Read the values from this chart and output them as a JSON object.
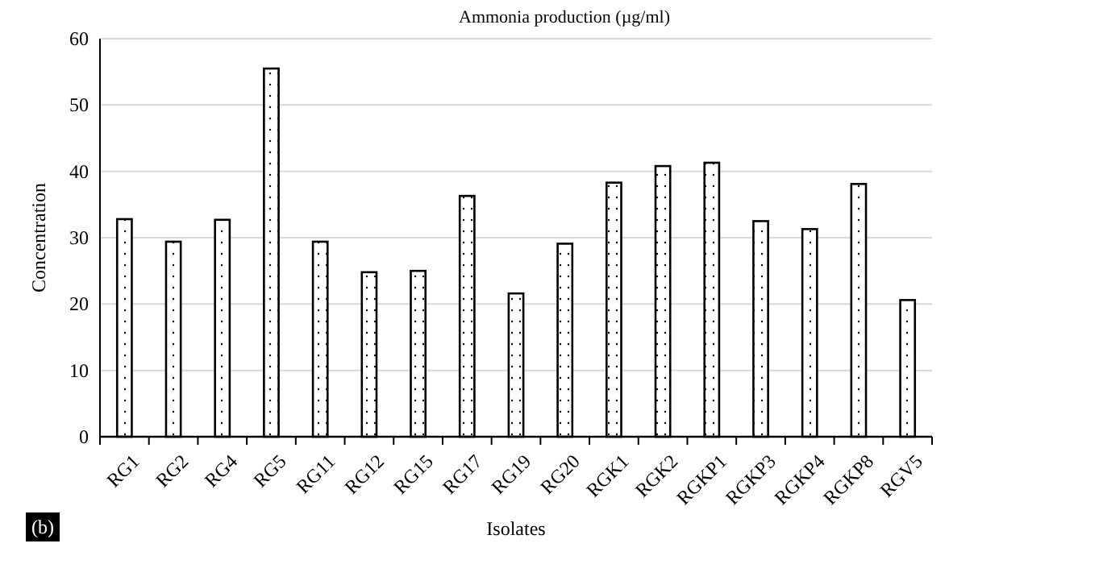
{
  "chart_data": {
    "type": "bar",
    "title": "Ammonia production (µg/ml)",
    "xlabel": "Isolates",
    "ylabel": "Concentration",
    "categories": [
      "RG1",
      "RG2",
      "RG4",
      "RG5",
      "RG11",
      "RG12",
      "RG15",
      "RG17",
      "RG19",
      "RG20",
      "RGK1",
      "RGK2",
      "RGKP1",
      "RGKP3",
      "RGKP4",
      "RGKP8",
      "RGV5"
    ],
    "values": [
      32.8,
      29.4,
      32.7,
      55.5,
      29.4,
      24.8,
      25,
      36.3,
      21.6,
      29.1,
      38.3,
      40.8,
      41.3,
      32.5,
      31.3,
      38.1,
      20.6
    ],
    "color": "#000000",
    "ylim": [
      0,
      60
    ],
    "yticks": [
      0,
      10,
      20,
      30,
      40,
      50,
      60
    ],
    "grid": "y",
    "annotations": [
      "(b)"
    ]
  }
}
